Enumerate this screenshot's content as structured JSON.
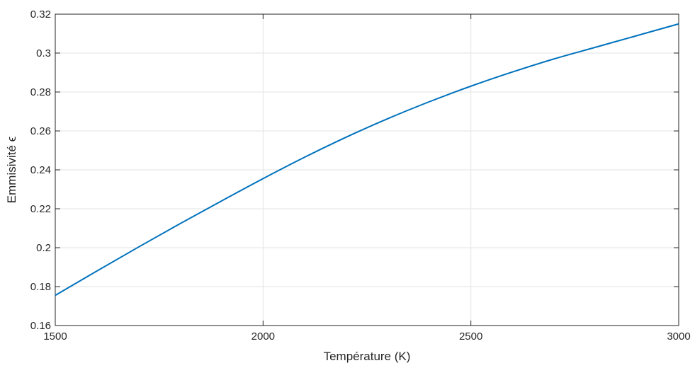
{
  "chart_data": {
    "type": "line",
    "xlabel": "Température (K)",
    "ylabel": "Emmisivité ϵ",
    "xlim": [
      1500,
      3000
    ],
    "ylim": [
      0.16,
      0.32
    ],
    "xticks": [
      "1500",
      "2000",
      "2500",
      "3000"
    ],
    "yticks": [
      "0.16",
      "0.18",
      "0.2",
      "0.22",
      "0.24",
      "0.26",
      "0.28",
      "0.3",
      "0.32"
    ],
    "grid": true,
    "series": [
      {
        "color": "#0072bd",
        "x": [
          1500,
          1600,
          1700,
          1800,
          1900,
          2000,
          2100,
          2200,
          2300,
          2400,
          2500,
          2600,
          2700,
          2800,
          2900,
          3000
        ],
        "y": [
          0.1755,
          0.188,
          0.2003,
          0.2123,
          0.224,
          0.2355,
          0.2465,
          0.2568,
          0.2663,
          0.275,
          0.283,
          0.2903,
          0.297,
          0.303,
          0.309,
          0.315
        ]
      }
    ]
  }
}
